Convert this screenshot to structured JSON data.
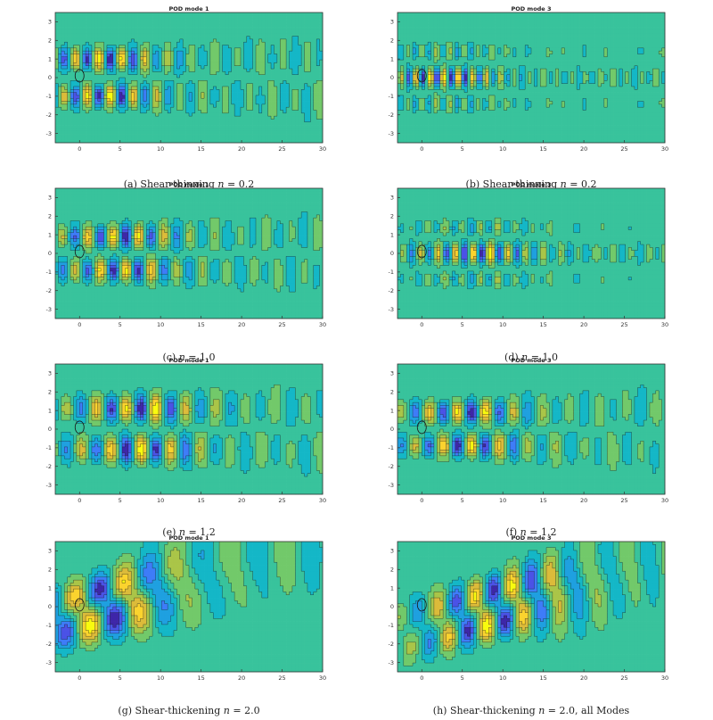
{
  "colors": {
    "scale": [
      "#3e26a8",
      "#4b52e6",
      "#3e7cf8",
      "#1fa0e0",
      "#14b7c7",
      "#38c39c",
      "#72c96a",
      "#aac548",
      "#dcbb3a",
      "#fbd32e",
      "#f9fb0e"
    ],
    "contour_line": "#1a1a1a",
    "axis": "#333333"
  },
  "shared_axes": {
    "xlim": [
      -3,
      30
    ],
    "ylim": [
      -3.5,
      3.5
    ],
    "xticks": [
      0,
      5,
      10,
      15,
      20,
      25,
      30
    ],
    "yticks": [
      3,
      2,
      1,
      0,
      -1,
      -2,
      -3
    ]
  },
  "chart_data": [
    {
      "id": "a",
      "type": "heatmap",
      "title": "POD mode 1",
      "caption_prefix": "(a) Shear-thinning ",
      "caption_var": "n",
      "caption_suffix": " = 0.2",
      "xlim": [
        -3,
        30
      ],
      "ylim": [
        -3.5,
        3.5
      ],
      "field": {
        "pattern": "antisym",
        "k": 2.2,
        "x0": 4.5,
        "y0": 1.0,
        "sy": 0.55,
        "decay": 0.14,
        "spread": 0.03,
        "amp": 1.0
      }
    },
    {
      "id": "b",
      "type": "heatmap",
      "title": "POD mode 3",
      "caption_prefix": "(b) Shear-thinning ",
      "caption_var": "n",
      "caption_suffix": " = 0.2",
      "xlim": [
        -3,
        30
      ],
      "ylim": [
        -3.5,
        3.5
      ],
      "field": {
        "pattern": "sym",
        "k": 3.6,
        "x0": 4.5,
        "y0": 0.0,
        "sy": 0.45,
        "decay": 0.2,
        "spread": 0.0,
        "amp": 1.0
      }
    },
    {
      "id": "c",
      "type": "heatmap",
      "title": "POD mode 1",
      "caption_prefix": "(c) ",
      "caption_var": "n",
      "caption_suffix": " = 1.0",
      "xlim": [
        -3,
        30
      ],
      "ylim": [
        -3.5,
        3.5
      ],
      "field": {
        "pattern": "antisym",
        "k": 2.0,
        "x0": 6.5,
        "y0": 0.9,
        "sy": 0.55,
        "decay": 0.13,
        "spread": 0.03,
        "amp": 1.0
      }
    },
    {
      "id": "d",
      "type": "heatmap",
      "title": "POD mode 3",
      "caption_prefix": "(d) ",
      "caption_var": "n",
      "caption_suffix": " = 1.0",
      "xlim": [
        -3,
        30
      ],
      "ylim": [
        -3.5,
        3.5
      ],
      "field": {
        "pattern": "sym",
        "k": 2.9,
        "x0": 8.5,
        "y0": 0.0,
        "sy": 0.5,
        "decay": 0.15,
        "spread": 0.0,
        "amp": 1.0
      }
    },
    {
      "id": "e",
      "type": "heatmap",
      "title": "POD mode 1",
      "caption_prefix": "(e) ",
      "caption_var": "n",
      "caption_suffix": " = 1.2",
      "xlim": [
        -3,
        30
      ],
      "ylim": [
        -3.5,
        3.5
      ],
      "field": {
        "pattern": "antisym",
        "k": 1.7,
        "x0": 8.5,
        "y0": 1.1,
        "sy": 0.65,
        "decay": 0.11,
        "spread": 0.03,
        "amp": 1.0
      }
    },
    {
      "id": "f",
      "type": "heatmap",
      "title": "POD mode 3",
      "caption_prefix": "(f) ",
      "caption_var": "n",
      "caption_suffix": " = 1.2",
      "xlim": [
        -3,
        30
      ],
      "ylim": [
        -3.5,
        3.5
      ],
      "field": {
        "pattern": "antisym",
        "k": 1.8,
        "x0": 7.0,
        "y0": 0.9,
        "sy": 0.55,
        "decay": 0.13,
        "spread": 0.04,
        "amp": 1.0
      }
    },
    {
      "id": "g",
      "type": "heatmap",
      "title": "POD mode 1",
      "caption_prefix": "(g) Shear-thickening ",
      "caption_var": "n",
      "caption_suffix": " = 2.0",
      "xlim": [
        -3,
        30
      ],
      "ylim": [
        -3.5,
        3.5
      ],
      "field": {
        "pattern": "diag",
        "k": 1.0,
        "x0": 4.0,
        "y0": 0.2,
        "sy": 0.9,
        "decay": 0.07,
        "spread": 0.08,
        "amp": 0.85
      }
    },
    {
      "id": "h",
      "type": "heatmap",
      "title": "POD mode 3",
      "caption_prefix": "(h) Shear-thickening ",
      "caption_var": "n",
      "caption_suffix": " = 2.0, all Modes",
      "xlim": [
        -3,
        30
      ],
      "ylim": [
        -3.5,
        3.5
      ],
      "field": {
        "pattern": "diag",
        "k": 1.35,
        "x0": 10.0,
        "y0": 0.1,
        "sy": 0.8,
        "decay": 0.06,
        "spread": 0.07,
        "amp": 1.0
      }
    }
  ]
}
